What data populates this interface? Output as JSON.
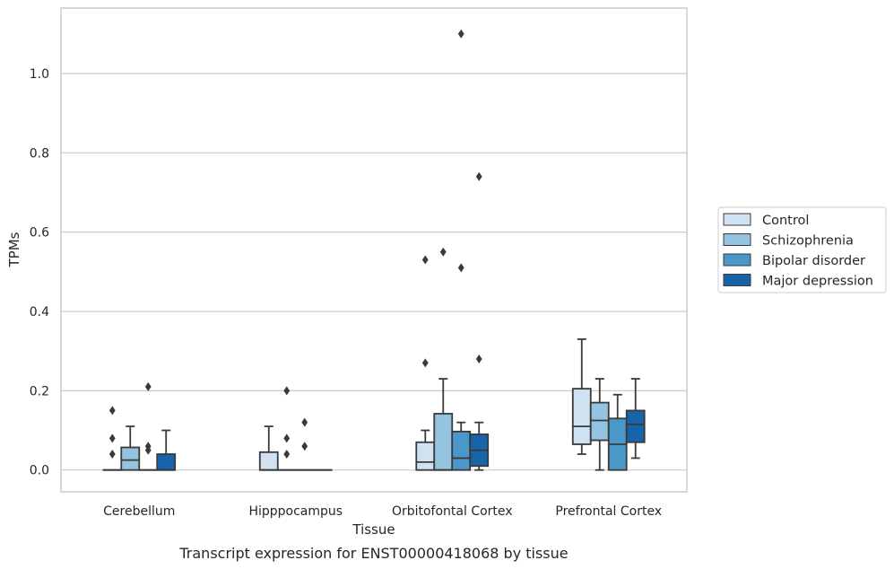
{
  "chart_data": {
    "type": "box",
    "xlabel": "Tissue",
    "ylabel": "TPMs",
    "caption": "Transcript expression for ENST00000418068 by tissue",
    "ylim": [
      -0.055,
      1.165
    ],
    "yticks": [
      "0.0",
      "0.2",
      "0.4",
      "0.6",
      "0.8",
      "1.0"
    ],
    "ytick_values": [
      0,
      0.2,
      0.4,
      0.6,
      0.8,
      1.0
    ],
    "grid": true,
    "legend_position": "outside-right",
    "categories": [
      "Cerebellum",
      "Hipppocampus",
      "Orbitofontal Cortex",
      "Prefrontal Cortex"
    ],
    "series": [
      {
        "name": "Control",
        "color": "#d0e1f2",
        "boxes": [
          {
            "q1": 0,
            "median": 0,
            "q3": 0,
            "whislo": 0,
            "whishi": 0,
            "fliers": [
              0.04,
              0.08,
              0.15
            ]
          },
          {
            "q1": 0,
            "median": 0,
            "q3": 0.045,
            "whislo": 0,
            "whishi": 0.11,
            "fliers": []
          },
          {
            "q1": 0,
            "median": 0.02,
            "q3": 0.07,
            "whislo": 0,
            "whishi": 0.1,
            "fliers": [
              0.27,
              0.53
            ]
          },
          {
            "q1": 0.065,
            "median": 0.11,
            "q3": 0.205,
            "whislo": 0.04,
            "whishi": 0.33,
            "fliers": []
          }
        ]
      },
      {
        "name": "Schizophrenia",
        "color": "#94c4df",
        "boxes": [
          {
            "q1": 0,
            "median": 0.025,
            "q3": 0.057,
            "whislo": 0,
            "whishi": 0.11,
            "fliers": []
          },
          {
            "q1": 0,
            "median": 0,
            "q3": 0,
            "whislo": 0,
            "whishi": 0,
            "fliers": [
              0.04,
              0.08,
              0.2
            ]
          },
          {
            "q1": 0,
            "median": 0,
            "q3": 0.142,
            "whislo": 0,
            "whishi": 0.23,
            "fliers": [
              0.55
            ]
          },
          {
            "q1": 0.075,
            "median": 0.125,
            "q3": 0.17,
            "whislo": 0,
            "whishi": 0.23,
            "fliers": []
          }
        ]
      },
      {
        "name": "Bipolar disorder",
        "color": "#4a98c9",
        "boxes": [
          {
            "q1": 0,
            "median": 0,
            "q3": 0,
            "whislo": 0,
            "whishi": 0,
            "fliers": [
              0.05,
              0.06,
              0.21
            ]
          },
          {
            "q1": 0,
            "median": 0,
            "q3": 0,
            "whislo": 0,
            "whishi": 0,
            "fliers": [
              0.06,
              0.12
            ]
          },
          {
            "q1": 0,
            "median": 0.03,
            "q3": 0.097,
            "whislo": 0,
            "whishi": 0.12,
            "fliers": [
              0.51,
              1.1
            ]
          },
          {
            "q1": 0,
            "median": 0.065,
            "q3": 0.13,
            "whislo": 0,
            "whishi": 0.19,
            "fliers": []
          }
        ]
      },
      {
        "name": "Major depression",
        "color": "#1764ab",
        "boxes": [
          {
            "q1": 0,
            "median": 0,
            "q3": 0.04,
            "whislo": 0,
            "whishi": 0.1,
            "fliers": []
          },
          {
            "q1": 0,
            "median": 0,
            "q3": 0,
            "whislo": 0,
            "whishi": 0,
            "fliers": []
          },
          {
            "q1": 0.01,
            "median": 0.05,
            "q3": 0.09,
            "whislo": 0,
            "whishi": 0.12,
            "fliers": [
              0.28,
              0.74
            ]
          },
          {
            "q1": 0.07,
            "median": 0.115,
            "q3": 0.15,
            "whislo": 0.03,
            "whishi": 0.23,
            "fliers": []
          }
        ]
      }
    ]
  }
}
